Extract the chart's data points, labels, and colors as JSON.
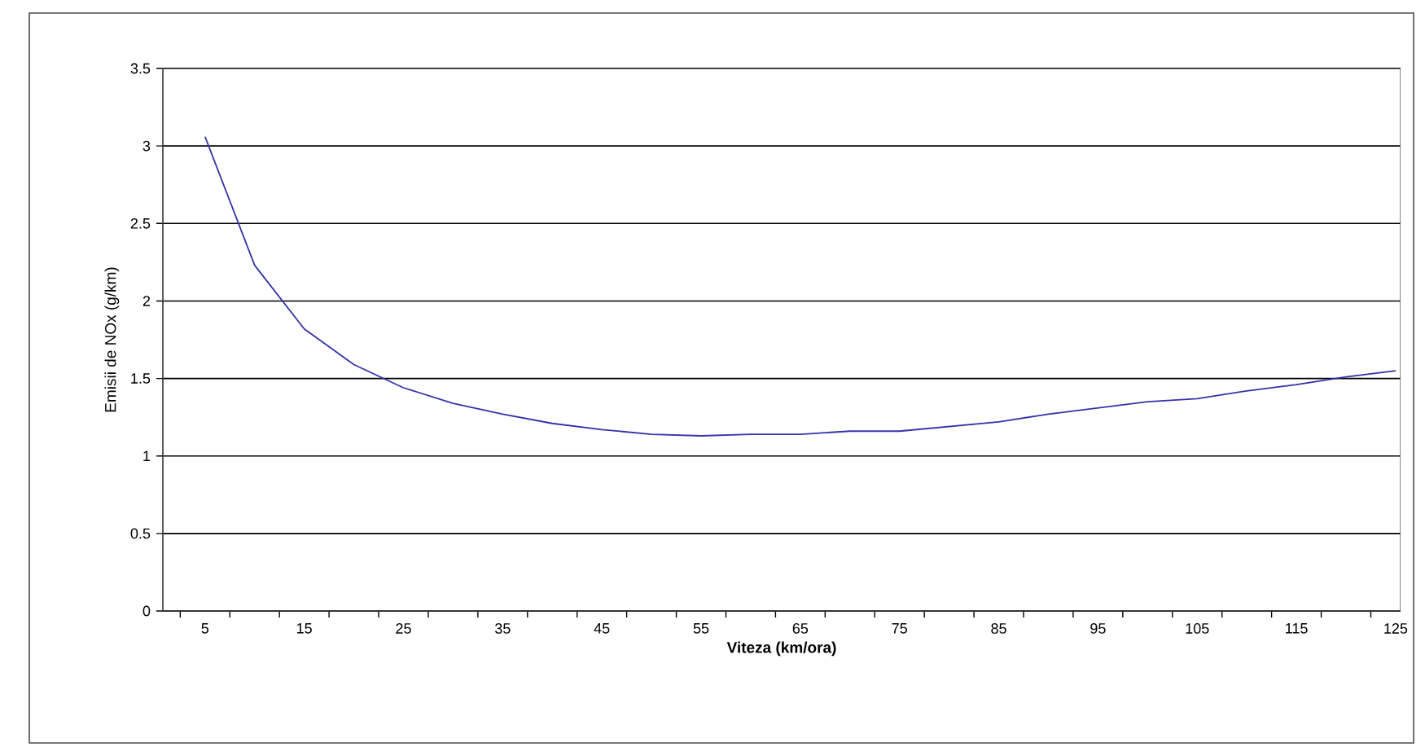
{
  "chart_data": {
    "type": "line",
    "xlabel": "**Viteza (km/ora)**",
    "ylabel": "Emisii de NOx (g/km)",
    "categories": [
      "5",
      null,
      "15",
      null,
      "25",
      null,
      "35",
      null,
      "45",
      null,
      "55",
      null,
      "65",
      null,
      "75",
      null,
      "85",
      null,
      "95",
      null,
      "105",
      null,
      "115",
      null,
      "125"
    ],
    "series": [
      {
        "color": "#3333aa",
        "values": [
          3.06,
          2.23,
          1.82,
          1.59,
          1.44,
          1.34,
          1.27,
          1.21,
          1.17,
          1.14,
          1.13,
          1.14,
          1.14,
          1.16,
          1.16,
          1.19,
          1.22,
          1.27,
          1.31,
          1.35,
          1.37,
          1.42,
          1.46,
          1.51,
          1.55
        ]
      }
    ],
    "ylim": [
      0,
      3.5
    ],
    "yticks": [
      0,
      0.5,
      1,
      1.5,
      2,
      2.5,
      3,
      3.5
    ],
    "grid": "y",
    "marker": "none",
    "line_style": "solid"
  }
}
